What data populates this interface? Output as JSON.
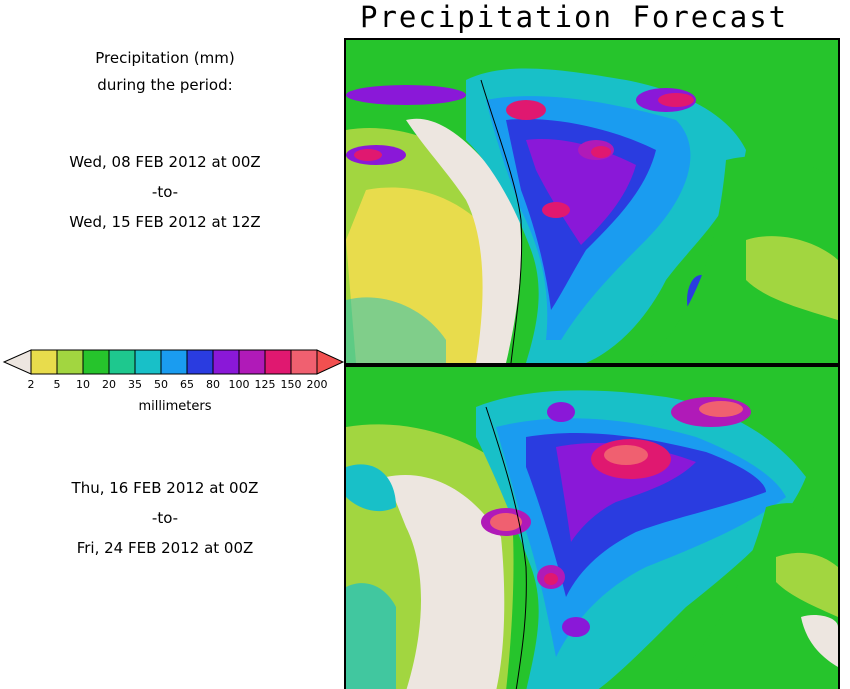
{
  "title": "Precipitation Forecast",
  "legend": {
    "line1": "Precipitation (mm)",
    "line2": "during the period:",
    "units": "millimeters",
    "ticks": [
      "2",
      "5",
      "10",
      "20",
      "35",
      "50",
      "65",
      "80",
      "100",
      "125",
      "150",
      "200"
    ],
    "colors": [
      "#e8dc4c",
      "#a2d640",
      "#26c42c",
      "#1ec88e",
      "#18c0c8",
      "#1a9cf0",
      "#2a3ce0",
      "#8a18d8",
      "#b01ab8",
      "#e01870",
      "#f06070"
    ],
    "low_arrow_color": "#ede6e0",
    "high_arrow_color": "#f25050"
  },
  "periods": [
    {
      "start": "Wed, 08 FEB 2012 at 00Z",
      "sep": "-to-",
      "end": "Wed, 15 FEB 2012 at 12Z"
    },
    {
      "start": "Thu, 16 FEB 2012 at 00Z",
      "sep": "-to-",
      "end": "Fri, 24 FEB 2012 at 00Z"
    }
  ],
  "colors": {
    "background_dry": "#ede6e0",
    "ocean_low": "#26c42c",
    "heavy": "#f06070"
  }
}
